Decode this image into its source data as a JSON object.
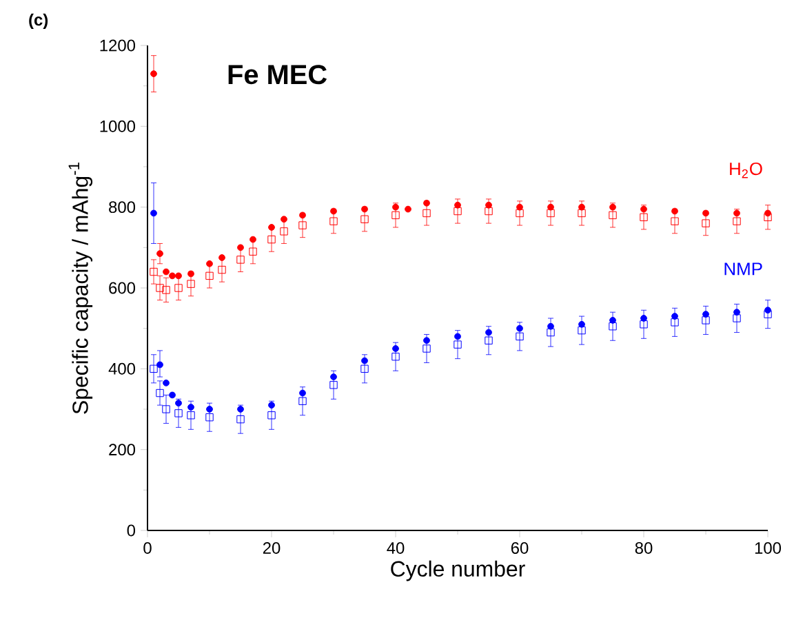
{
  "chart_data": {
    "type": "scatter",
    "title": "Fe MEC",
    "xlabel": "Cycle number",
    "ylabel": "Specific capacity / mAhg$^{-1}$",
    "annotations": [
      "(c)"
    ],
    "xlim": [
      0,
      100
    ],
    "ylim": [
      0,
      1200
    ],
    "xticks": [
      0,
      20,
      40,
      60,
      80,
      100
    ],
    "yticks": [
      0,
      200,
      400,
      600,
      800,
      1000,
      1200
    ],
    "grid": false,
    "series": [
      {
        "name": "H$_{2}$O",
        "color": "#ff0000",
        "marker": "circle",
        "x": [
          1,
          2,
          3,
          4,
          5,
          7,
          10,
          12,
          15,
          17,
          20,
          22,
          25,
          30,
          35,
          40,
          42,
          45,
          50,
          55,
          60,
          65,
          70,
          75,
          80,
          85,
          90,
          95,
          100
        ],
        "values": [
          1130,
          685,
          640,
          630,
          630,
          635,
          660,
          675,
          700,
          720,
          750,
          770,
          780,
          790,
          795,
          800,
          795,
          810,
          805,
          805,
          800,
          800,
          800,
          800,
          795,
          790,
          785,
          785,
          785
        ],
        "errors": [
          45,
          25,
          null,
          null,
          null,
          null,
          null,
          null,
          null,
          null,
          null,
          null,
          null,
          null,
          null,
          null,
          null,
          null,
          null,
          null,
          null,
          null,
          null,
          null,
          null,
          null,
          null,
          null,
          null
        ]
      },
      {
        "color": "#ff0000",
        "marker": "square",
        "x": [
          1,
          2,
          3,
          5,
          7,
          10,
          12,
          15,
          17,
          20,
          22,
          25,
          30,
          35,
          40,
          45,
          50,
          55,
          60,
          65,
          70,
          75,
          80,
          85,
          90,
          95,
          100
        ],
        "values": [
          640,
          600,
          595,
          600,
          610,
          630,
          645,
          670,
          690,
          720,
          740,
          755,
          765,
          770,
          780,
          785,
          790,
          790,
          785,
          785,
          785,
          780,
          775,
          765,
          760,
          765,
          775
        ],
        "errors": [
          30,
          30,
          30,
          30,
          30,
          30,
          30,
          30,
          30,
          30,
          30,
          30,
          30,
          30,
          30,
          30,
          30,
          30,
          30,
          30,
          30,
          30,
          30,
          30,
          30,
          30,
          30
        ]
      },
      {
        "name": "NMP",
        "color": "#0000ff",
        "marker": "circle",
        "x": [
          1,
          2,
          3,
          4,
          5,
          7,
          10,
          15,
          20,
          25,
          30,
          35,
          40,
          45,
          50,
          55,
          60,
          65,
          70,
          75,
          80,
          85,
          90,
          95,
          100
        ],
        "values": [
          785,
          410,
          365,
          335,
          315,
          305,
          300,
          300,
          310,
          340,
          380,
          420,
          450,
          470,
          480,
          490,
          500,
          505,
          510,
          520,
          525,
          530,
          535,
          540,
          545
        ],
        "errors": [
          75,
          [
            380,
            445
          ],
          null,
          null,
          null,
          null,
          null,
          null,
          null,
          null,
          null,
          null,
          null,
          null,
          null,
          null,
          null,
          null,
          null,
          null,
          null,
          null,
          null,
          null,
          null
        ]
      },
      {
        "color": "#0000ff",
        "marker": "square",
        "x": [
          1,
          2,
          3,
          5,
          7,
          10,
          15,
          20,
          25,
          30,
          35,
          40,
          45,
          50,
          55,
          60,
          65,
          70,
          75,
          80,
          85,
          90,
          95,
          100
        ],
        "values": [
          400,
          340,
          300,
          290,
          285,
          280,
          275,
          285,
          320,
          360,
          400,
          430,
          450,
          460,
          470,
          480,
          490,
          495,
          505,
          510,
          515,
          520,
          525,
          535
        ],
        "errors": [
          35,
          30,
          35,
          35,
          35,
          35,
          35,
          35,
          35,
          35,
          35,
          35,
          35,
          35,
          35,
          35,
          35,
          35,
          35,
          35,
          35,
          35,
          35,
          35
        ]
      }
    ]
  }
}
